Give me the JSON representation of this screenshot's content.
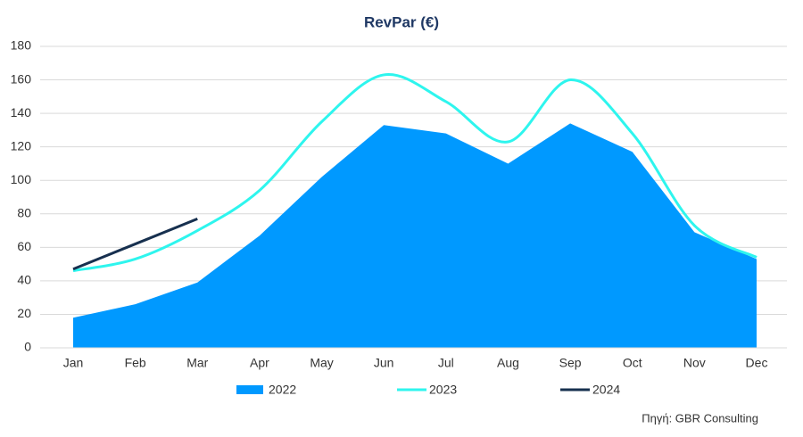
{
  "chart_data": {
    "type": "line",
    "title": "RevPar (€)",
    "categories": [
      "Jan",
      "Feb",
      "Mar",
      "Apr",
      "May",
      "Jun",
      "Jul",
      "Aug",
      "Sep",
      "Oct",
      "Nov",
      "Dec"
    ],
    "series": [
      {
        "name": "2022",
        "color": "#0099ff",
        "style": "area",
        "values": [
          18,
          26,
          39,
          67,
          102,
          133,
          128,
          110,
          134,
          117,
          69,
          53
        ]
      },
      {
        "name": "2023",
        "color": "#2ef5ee",
        "style": "smooth",
        "values": [
          46,
          53,
          70,
          94,
          135,
          163,
          147,
          123,
          160,
          128,
          73,
          54
        ]
      },
      {
        "name": "2024",
        "color": "#17304f",
        "style": "line",
        "values": [
          47,
          62,
          77,
          null,
          null,
          null,
          null,
          null,
          null,
          null,
          null,
          null
        ]
      }
    ],
    "ylim": [
      0,
      180
    ],
    "yticks": [
      0,
      20,
      40,
      60,
      80,
      100,
      120,
      140,
      160,
      180
    ],
    "grid": true,
    "source": "Πηγή: GBR Consulting"
  }
}
